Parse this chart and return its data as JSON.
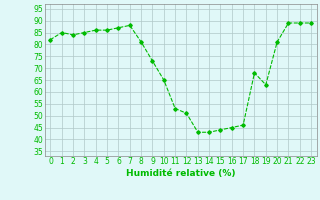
{
  "x": [
    0,
    1,
    2,
    3,
    4,
    5,
    6,
    7,
    8,
    9,
    10,
    11,
    12,
    13,
    14,
    15,
    16,
    17,
    18,
    19,
    20,
    21,
    22,
    23
  ],
  "y": [
    82,
    85,
    84,
    85,
    86,
    86,
    87,
    88,
    81,
    73,
    65,
    53,
    51,
    43,
    43,
    44,
    45,
    46,
    68,
    63,
    81,
    89,
    89,
    89
  ],
  "line_color": "#00bb00",
  "marker": "D",
  "marker_size": 1.8,
  "bg_color": "#e0f8f8",
  "grid_color": "#b0c8c8",
  "xlabel": "Humidité relative (%)",
  "ylabel_ticks": [
    35,
    40,
    45,
    50,
    55,
    60,
    65,
    70,
    75,
    80,
    85,
    90,
    95
  ],
  "ylim": [
    33,
    97
  ],
  "xlim": [
    -0.5,
    23.5
  ],
  "xlabel_fontsize": 6.5,
  "tick_fontsize": 5.5
}
